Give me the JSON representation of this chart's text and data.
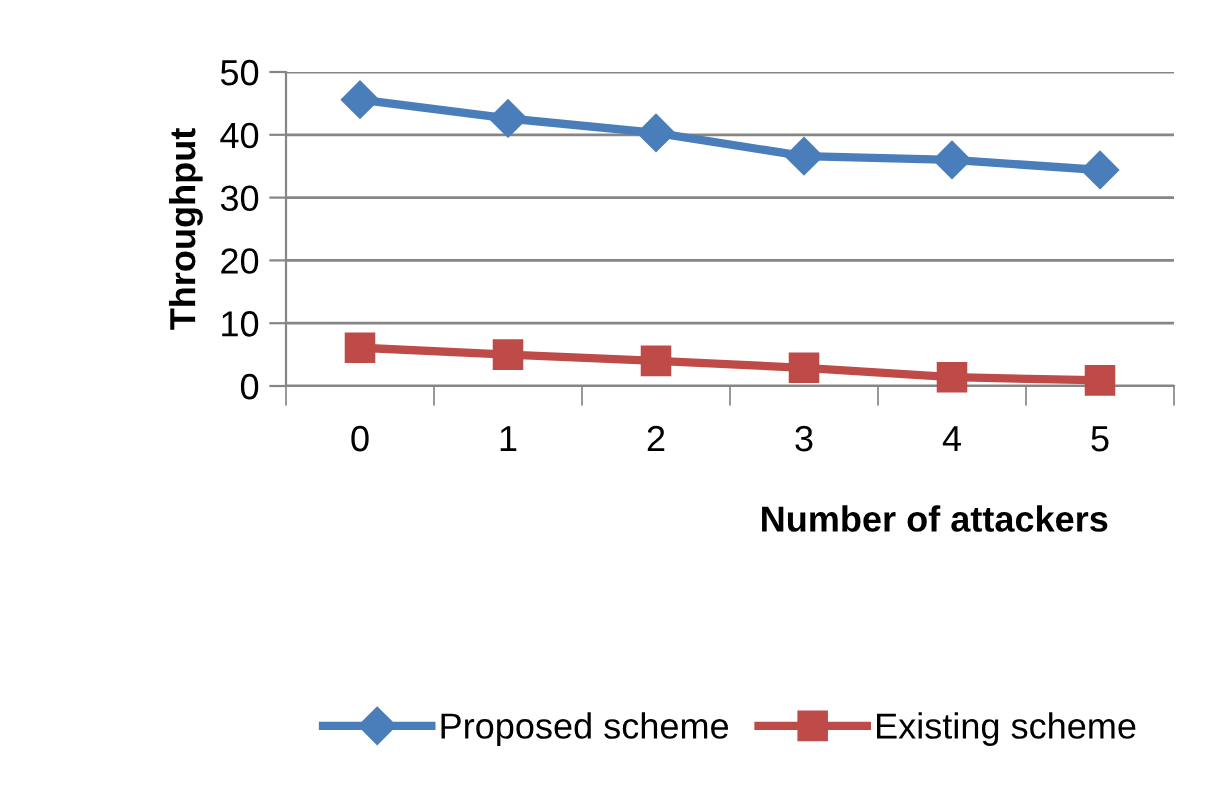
{
  "chart_data": {
    "type": "line",
    "xlabel": "Number of attackers",
    "ylabel": "Throughput",
    "categories": [
      "0",
      "1",
      "2",
      "3",
      "4",
      "5"
    ],
    "series": [
      {
        "name": "Proposed scheme",
        "color": "#4a7ebb",
        "values": [
          45.6,
          42.6,
          40.3,
          36.6,
          36.0,
          34.4
        ],
        "marker": "diamond"
      },
      {
        "name": "Existing scheme",
        "color": "#be4b48",
        "values": [
          6.1,
          5.0,
          4.0,
          2.9,
          1.4,
          0.9
        ],
        "marker": "square"
      }
    ],
    "ylim": [
      0,
      50
    ],
    "yticks": [
      0,
      10,
      20,
      30,
      40,
      50
    ],
    "grid": "y",
    "legend": "bottom",
    "line_style": "solid"
  }
}
